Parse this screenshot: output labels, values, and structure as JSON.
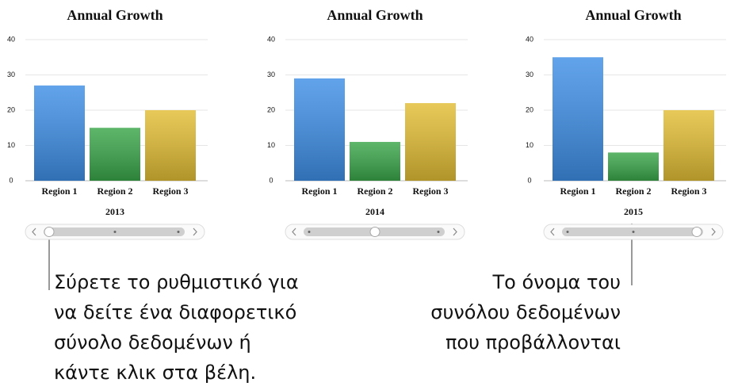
{
  "chart_data": [
    {
      "type": "bar",
      "title": "Annual Growth",
      "categories": [
        "Region 1",
        "Region 2",
        "Region 3"
      ],
      "xlabel": "2013",
      "values": [
        27,
        15,
        20
      ],
      "colors": [
        "#3f8fe6",
        "#3aa64a",
        "#e2bd35"
      ],
      "ylim": [
        0,
        40
      ],
      "yticks": [
        0,
        10,
        20,
        30,
        40
      ],
      "grid": true
    },
    {
      "type": "bar",
      "title": "Annual Growth",
      "categories": [
        "Region 1",
        "Region 2",
        "Region 3"
      ],
      "xlabel": "2014",
      "values": [
        29,
        11,
        22
      ],
      "colors": [
        "#3f8fe6",
        "#3aa64a",
        "#e2bd35"
      ],
      "ylim": [
        0,
        40
      ],
      "yticks": [
        0,
        10,
        20,
        30,
        40
      ],
      "grid": true
    },
    {
      "type": "bar",
      "title": "Annual Growth",
      "categories": [
        "Region 1",
        "Region 2",
        "Region 3"
      ],
      "xlabel": "2015",
      "values": [
        35,
        8,
        20
      ],
      "colors": [
        "#3f8fe6",
        "#3aa64a",
        "#e2bd35"
      ],
      "ylim": [
        0,
        40
      ],
      "yticks": [
        0,
        10,
        20,
        30,
        40
      ],
      "grid": true
    }
  ],
  "callouts": [
    {
      "lines": [
        "Σύρετε το ρυθμιστικό για",
        "να δείτε ένα διαφορετικό",
        "σύνολο δεδομένων ή",
        "κάντε κλικ στα βέλη."
      ]
    },
    {
      "lines": [
        "Το όνομα του",
        "συνόλου δεδομένων",
        "που προβάλλονται"
      ]
    }
  ]
}
